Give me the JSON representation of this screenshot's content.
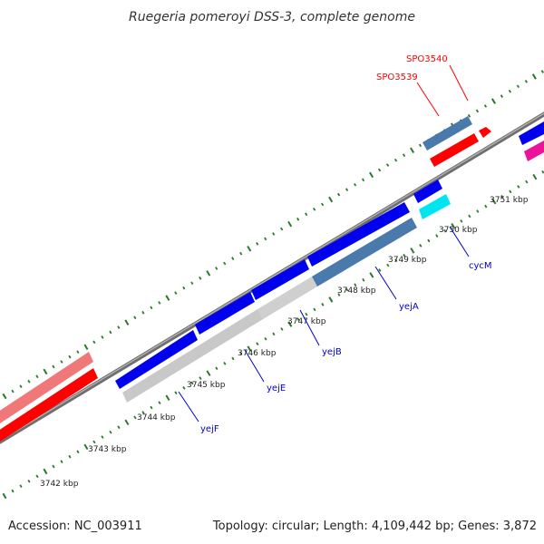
{
  "header": {
    "title": "Ruegeria pomeroyi DSS-3, complete genome"
  },
  "footer": {
    "accession": "Accession: NC_003911",
    "summary": "Topology: circular; Length: 4,109,442 bp; Genes: 3,872"
  },
  "scale": {
    "ticks": [
      {
        "label": "3742 kbp"
      },
      {
        "label": "3743 kbp"
      },
      {
        "label": "3744 kbp"
      },
      {
        "label": "3745 kbp"
      },
      {
        "label": "3746 kbp"
      },
      {
        "label": "3747 kbp"
      },
      {
        "label": "3748 kbp"
      },
      {
        "label": "3749 kbp"
      },
      {
        "label": "3750 kbp"
      },
      {
        "label": "3751 kbp"
      }
    ]
  },
  "gene_labels": [
    {
      "name": "SPO3540",
      "color": "#ff0000"
    },
    {
      "name": "SPO3539",
      "color": "#ff0000"
    },
    {
      "name": "cycM",
      "color": "#0000cc"
    },
    {
      "name": "yejA",
      "color": "#0000cc"
    },
    {
      "name": "yejB",
      "color": "#0000cc"
    },
    {
      "name": "yejE",
      "color": "#0000cc"
    },
    {
      "name": "yejF",
      "color": "#0000cc"
    }
  ],
  "colors": {
    "backbone": "#777777",
    "tick": "#2a7a2a",
    "blue_gene": "#0000ee",
    "steel_gene": "#4a7aab",
    "red_gene": "#ff0000",
    "pink_gene": "#f07878",
    "gray_gene": "#c8c8c8",
    "cyan_gene": "#00e5f0",
    "magenta_gene": "#ee1199"
  }
}
